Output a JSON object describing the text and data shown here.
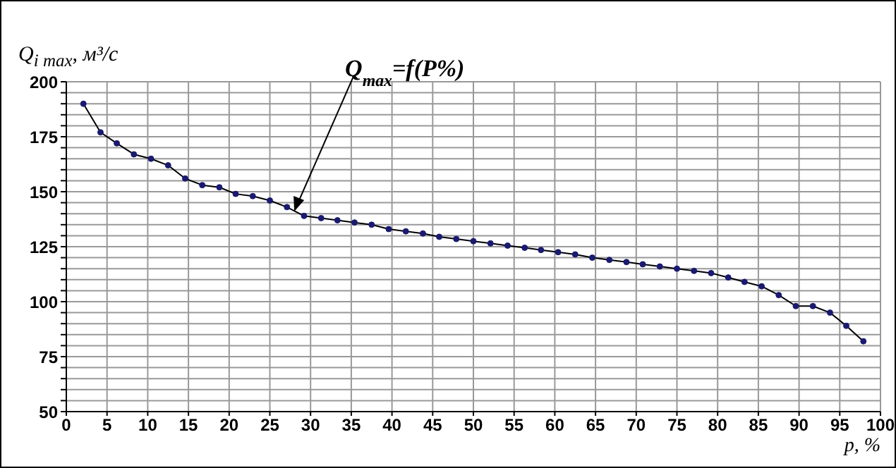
{
  "chart_data": {
    "type": "line",
    "xlabel": "p, %",
    "ylabel": "Q$_{i max}$, м³/с",
    "annotations": [
      {
        "text": "Q$_{max}$=f(P%)",
        "x": 28,
        "y": 141
      }
    ],
    "x": [
      2.1,
      4.2,
      6.2,
      8.3,
      10.4,
      12.5,
      14.6,
      16.7,
      18.8,
      20.8,
      22.9,
      25,
      27.1,
      29.2,
      31.3,
      33.3,
      35.4,
      37.5,
      39.6,
      41.7,
      43.8,
      45.8,
      47.9,
      50,
      52.1,
      54.2,
      56.3,
      58.3,
      60.4,
      62.5,
      64.6,
      66.7,
      68.8,
      70.8,
      72.9,
      75,
      77.1,
      79.2,
      81.3,
      83.3,
      85.4,
      87.5,
      89.6,
      91.7,
      93.8,
      95.8,
      97.9
    ],
    "series": [
      {
        "color": "#1a1a70",
        "values": [
          190,
          177,
          172,
          167,
          165,
          162,
          156,
          153,
          152,
          149,
          148,
          146,
          143,
          139,
          138,
          137,
          136,
          135,
          133,
          132,
          131,
          129.5,
          128.5,
          127.5,
          126.5,
          125.5,
          124.5,
          123.5,
          122.5,
          121.5,
          120,
          119,
          118,
          117,
          116,
          115,
          114,
          113,
          111,
          109,
          107,
          103,
          98,
          98,
          95,
          89,
          82
        ]
      }
    ],
    "xlim": [
      0,
      100
    ],
    "xticks": [
      0,
      5,
      10,
      15,
      20,
      25,
      30,
      35,
      40,
      45,
      50,
      55,
      60,
      65,
      70,
      75,
      80,
      85,
      90,
      95,
      100
    ],
    "ylim": [
      50,
      200
    ],
    "yticks": [
      50,
      {
        "value": 55,
        "label": null
      },
      {
        "value": 60,
        "label": null
      },
      {
        "value": 65,
        "label": null
      },
      {
        "value": 70,
        "label": null
      },
      75,
      {
        "value": 80,
        "label": null
      },
      {
        "value": 85,
        "label": null
      },
      {
        "value": 90,
        "label": null
      },
      {
        "value": 95,
        "label": null
      },
      100,
      {
        "value": 105,
        "label": null
      },
      {
        "value": 110,
        "label": null
      },
      {
        "value": 115,
        "label": null
      },
      {
        "value": 120,
        "label": null
      },
      125,
      {
        "value": 130,
        "label": null
      },
      {
        "value": 135,
        "label": null
      },
      {
        "value": 140,
        "label": null
      },
      {
        "value": 145,
        "label": null
      },
      150,
      {
        "value": 155,
        "label": null
      },
      {
        "value": 160,
        "label": null
      },
      {
        "value": 165,
        "label": null
      },
      {
        "value": 170,
        "label": null
      },
      175,
      {
        "value": 180,
        "label": null
      },
      {
        "value": 185,
        "label": null
      },
      {
        "value": 190,
        "label": null
      },
      {
        "value": 195,
        "label": null
      },
      200
    ],
    "grid": true,
    "marker": "circle",
    "line_style": "solid",
    "legend": false
  }
}
